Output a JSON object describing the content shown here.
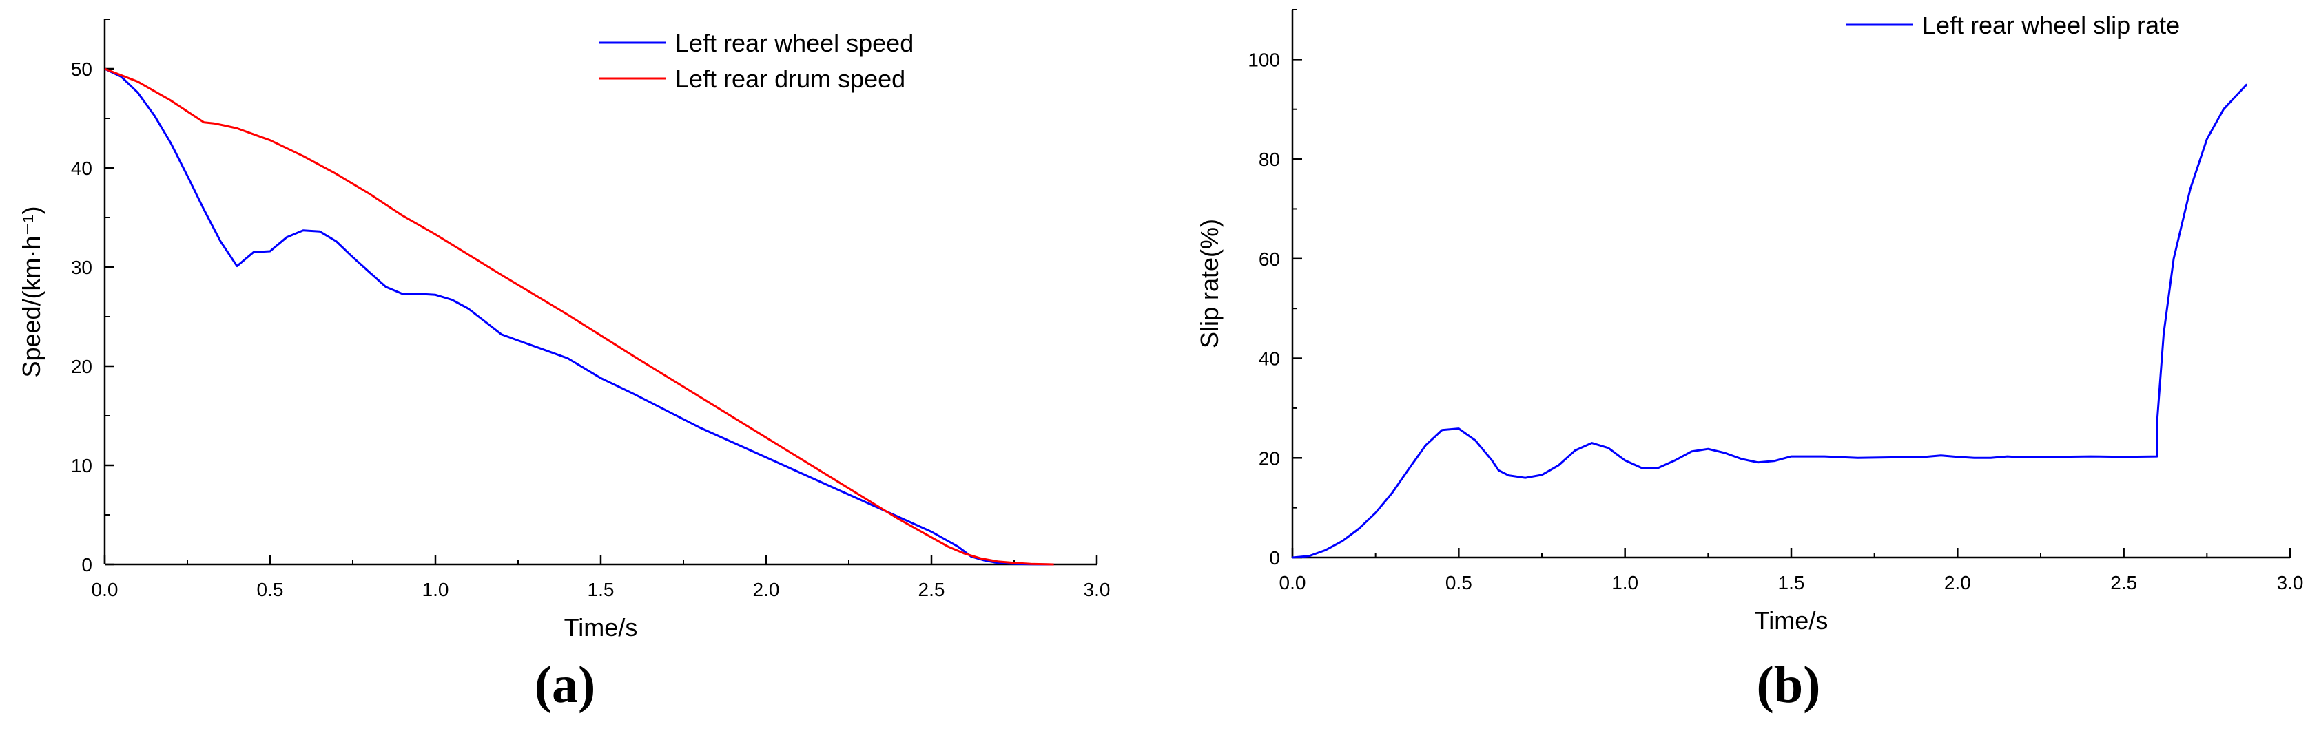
{
  "chart_data": [
    {
      "type": "line",
      "panel_label": "(a)",
      "xlabel": "Time/s",
      "ylabel": "Speed/(km·h⁻¹)",
      "xlim": [
        0,
        3.0
      ],
      "ylim": [
        0,
        55
      ],
      "xticks": [
        0.0,
        0.5,
        1.0,
        1.5,
        2.0,
        2.5,
        3.0
      ],
      "xtick_labels": [
        "0.0",
        "0.5",
        "1.0",
        "1.5",
        "2.0",
        "2.5",
        "3.0"
      ],
      "yticks": [
        0,
        10,
        20,
        30,
        40,
        50
      ],
      "ytick_labels": [
        "0",
        "10",
        "20",
        "30",
        "40",
        "50"
      ],
      "legend_position": "top-right",
      "series": [
        {
          "name": "Left rear wheel speed",
          "color": "#0000ff",
          "x": [
            0,
            0.05,
            0.1,
            0.15,
            0.2,
            0.25,
            0.3,
            0.35,
            0.4,
            0.45,
            0.5,
            0.55,
            0.6,
            0.65,
            0.7,
            0.75,
            0.8,
            0.85,
            0.9,
            0.95,
            1.0,
            1.05,
            1.1,
            1.15,
            1.2,
            1.25,
            1.3,
            1.35,
            1.4,
            1.5,
            1.6,
            1.7,
            1.8,
            1.9,
            2.0,
            2.1,
            2.2,
            2.3,
            2.4,
            2.5,
            2.58,
            2.62,
            2.66,
            2.7,
            2.75,
            2.8,
            2.87
          ],
          "y": [
            50,
            49.2,
            47.6,
            45.3,
            42.5,
            39.2,
            35.8,
            32.6,
            30.1,
            31.5,
            31.6,
            33.0,
            33.7,
            33.6,
            32.6,
            31.0,
            29.5,
            28.0,
            27.3,
            27.3,
            27.2,
            26.7,
            25.8,
            24.5,
            23.2,
            22.6,
            22.0,
            21.4,
            20.8,
            18.8,
            17.2,
            15.5,
            13.8,
            12.3,
            10.8,
            9.3,
            7.8,
            6.3,
            4.8,
            3.3,
            1.8,
            0.8,
            0.4,
            0.15,
            0.05,
            0.02,
            0.0
          ]
        },
        {
          "name": "Left rear drum speed",
          "color": "#ff0000",
          "x": [
            0,
            0.1,
            0.2,
            0.3,
            0.33,
            0.36,
            0.4,
            0.5,
            0.6,
            0.7,
            0.8,
            0.9,
            1.0,
            1.2,
            1.4,
            1.6,
            1.8,
            2.0,
            2.2,
            2.4,
            2.55,
            2.6,
            2.65,
            2.7,
            2.75,
            2.8,
            2.87
          ],
          "y": [
            50,
            48.7,
            46.8,
            44.6,
            44.5,
            44.3,
            44.0,
            42.8,
            41.2,
            39.4,
            37.4,
            35.2,
            33.3,
            29.2,
            25.2,
            21.0,
            16.9,
            12.8,
            8.7,
            4.6,
            1.8,
            1.1,
            0.6,
            0.3,
            0.15,
            0.05,
            0.0
          ]
        }
      ]
    },
    {
      "type": "line",
      "panel_label": "(b)",
      "xlabel": "Time/s",
      "ylabel": "Slip rate(%)",
      "xlim": [
        0,
        3.0
      ],
      "ylim": [
        0,
        110
      ],
      "xticks": [
        0.0,
        0.5,
        1.0,
        1.5,
        2.0,
        2.5,
        3.0
      ],
      "xtick_labels": [
        "0.0",
        "0.5",
        "1.0",
        "1.5",
        "2.0",
        "2.5",
        "3.0"
      ],
      "yticks": [
        0,
        20,
        40,
        60,
        80,
        100
      ],
      "ytick_labels": [
        "0",
        "20",
        "40",
        "60",
        "80",
        "100"
      ],
      "legend_position": "top-right",
      "series": [
        {
          "name": "Left rear wheel slip rate",
          "color": "#0000ff",
          "x": [
            0,
            0.05,
            0.1,
            0.15,
            0.2,
            0.25,
            0.3,
            0.35,
            0.4,
            0.45,
            0.5,
            0.55,
            0.6,
            0.62,
            0.65,
            0.7,
            0.75,
            0.8,
            0.85,
            0.9,
            0.95,
            1.0,
            1.05,
            1.1,
            1.15,
            1.2,
            1.25,
            1.3,
            1.35,
            1.4,
            1.45,
            1.5,
            1.6,
            1.7,
            1.8,
            1.9,
            1.95,
            2.0,
            2.05,
            2.1,
            2.15,
            2.2,
            2.3,
            2.4,
            2.5,
            2.6,
            2.601,
            2.62,
            2.65,
            2.7,
            2.75,
            2.8,
            2.87
          ],
          "y": [
            0,
            0.3,
            1.5,
            3.3,
            5.8,
            9.0,
            13.0,
            17.8,
            22.5,
            25.6,
            25.9,
            23.5,
            19.5,
            17.5,
            16.5,
            16.0,
            16.6,
            18.5,
            21.5,
            23.0,
            22.0,
            19.5,
            18.0,
            18.0,
            19.5,
            21.3,
            21.8,
            21.0,
            19.8,
            19.1,
            19.4,
            20.3,
            20.3,
            20.0,
            20.1,
            20.2,
            20.5,
            20.2,
            20.0,
            20.0,
            20.3,
            20.1,
            20.2,
            20.3,
            20.2,
            20.3,
            28.0,
            45.0,
            60.0,
            74.0,
            84.0,
            90.0,
            95.0
          ]
        }
      ]
    }
  ]
}
